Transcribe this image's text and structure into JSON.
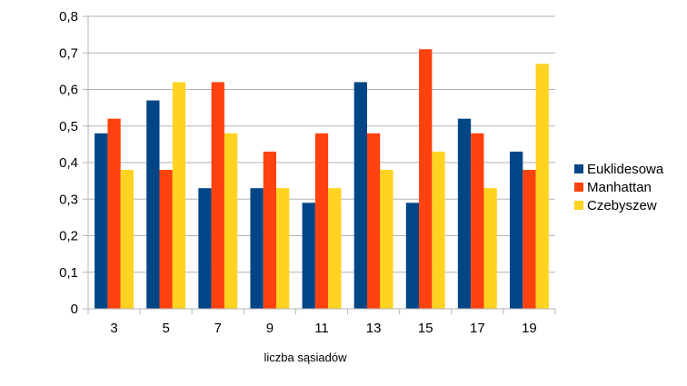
{
  "chart_data": {
    "type": "bar",
    "title": "",
    "xlabel": "liczba sąsiadów",
    "ylabel": "",
    "categories": [
      "3",
      "5",
      "7",
      "9",
      "11",
      "13",
      "15",
      "17",
      "19"
    ],
    "y_ticks": [
      "0",
      "0,1",
      "0,2",
      "0,3",
      "0,4",
      "0,5",
      "0,6",
      "0,7",
      "0,8"
    ],
    "ylim": [
      0,
      0.8
    ],
    "grid": true,
    "legend_position": "right",
    "series": [
      {
        "name": "Euklidesowa",
        "color": "#004586",
        "values": [
          0.48,
          0.57,
          0.33,
          0.33,
          0.29,
          0.62,
          0.29,
          0.52,
          0.43
        ]
      },
      {
        "name": "Manhattan",
        "color": "#ff420e",
        "values": [
          0.52,
          0.38,
          0.62,
          0.43,
          0.48,
          0.48,
          0.71,
          0.48,
          0.38
        ]
      },
      {
        "name": "Czebyszew",
        "color": "#ffd320",
        "values": [
          0.38,
          0.62,
          0.48,
          0.33,
          0.33,
          0.38,
          0.43,
          0.33,
          0.67
        ]
      }
    ]
  }
}
